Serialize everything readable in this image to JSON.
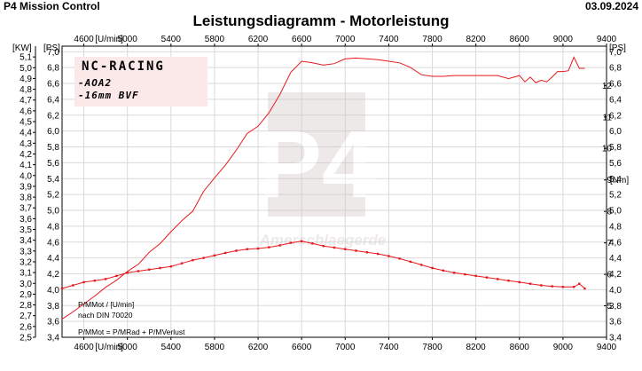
{
  "header": {
    "app_title": "P4 Mission Control",
    "chart_title": "Leistungsdiagramm - Motorleistung",
    "date": "03.09.2024"
  },
  "info_box": {
    "line1": "NC-RACING",
    "line2": "-AOA2",
    "line3": "-16mm BVF"
  },
  "watermark": {
    "logo": "P4",
    "text": "Amerschlaegerde"
  },
  "notes": {
    "line1": "P/MMot / [U/min]",
    "line2": "nach DIN 70020",
    "line3": "P/MMot = P/MRad + P/MVerlust"
  },
  "colors": {
    "series": "#e8191e",
    "grid": "#d9d9d9",
    "info_bg": "#fbe9e9"
  },
  "chart_data": {
    "type": "line",
    "title": "Leistungsdiagramm - Motorleistung",
    "x_axis": {
      "unit_label": "[U/min]",
      "range": [
        4400,
        9400
      ],
      "ticks": [
        4600,
        5000,
        5400,
        5800,
        6200,
        6600,
        7000,
        7400,
        7800,
        8200,
        8600,
        9000,
        9400
      ],
      "tick_labels": [
        "4600",
        "5000",
        "5400",
        "5800",
        "6200",
        "6600",
        "7000",
        "7400",
        "7800",
        "8200",
        "8600",
        "9000",
        "9400"
      ]
    },
    "y_left_kw": {
      "unit_label": "[KW]",
      "range": [
        2.5,
        5.2
      ],
      "tick_labels": [
        "2,5",
        "2,6",
        "2,7",
        "2,8",
        "2,9",
        "3,0",
        "3,1",
        "3,2",
        "3,3",
        "3,4",
        "3,5",
        "3,6",
        "3,7",
        "3,8",
        "3,9",
        "4,0",
        "4,1",
        "4,2",
        "4,3",
        "4,4",
        "4,5",
        "4,6",
        "4,7",
        "4,8",
        "4,9",
        "5,0",
        "5,1"
      ],
      "tick_values": [
        2.5,
        2.6,
        2.7,
        2.8,
        2.9,
        3.0,
        3.1,
        3.2,
        3.3,
        3.4,
        3.5,
        3.6,
        3.7,
        3.8,
        3.9,
        4.0,
        4.1,
        4.2,
        4.3,
        4.4,
        4.5,
        4.6,
        4.7,
        4.8,
        4.9,
        5.0,
        5.1
      ]
    },
    "y_left_ps": {
      "unit_label": "[PS]",
      "range": [
        3.4,
        7.07
      ],
      "tick_labels": [
        "3,4",
        "3,6",
        "3,8",
        "4,0",
        "4,2",
        "4,4",
        "4,6",
        "4,8",
        "5,0",
        "5,2",
        "5,4",
        "5,6",
        "5,8",
        "6,0",
        "6,2",
        "6,4",
        "6,6",
        "6,8",
        "7,0"
      ],
      "tick_values": [
        3.4,
        3.6,
        3.8,
        4.0,
        4.2,
        4.4,
        4.6,
        4.8,
        5.0,
        5.2,
        5.4,
        5.6,
        5.8,
        6.0,
        6.2,
        6.4,
        6.6,
        6.8,
        7.0
      ]
    },
    "y_right_ps": {
      "unit_label": "[PS]",
      "tick_labels": [
        "3,4",
        "3,6",
        "3,8",
        "4,0",
        "4,2",
        "4,4",
        "4,6",
        "4,8",
        "5,0",
        "5,2",
        "5,4",
        "5,6",
        "5,8",
        "6,0",
        "6,2",
        "6,4",
        "6,6",
        "6,8",
        "7,0"
      ],
      "tick_values": [
        3.4,
        3.6,
        3.8,
        4.0,
        4.2,
        4.4,
        4.6,
        4.8,
        5.0,
        5.2,
        5.4,
        5.6,
        5.8,
        6.0,
        6.2,
        6.4,
        6.6,
        6.8,
        7.0
      ]
    },
    "y_right_nm": {
      "unit_label": "[Nm]",
      "range": [
        4.0,
        13.25
      ],
      "tick_labels": [
        "5",
        "6",
        "7",
        "8",
        "9",
        "10",
        "11",
        "12"
      ],
      "tick_values": [
        5,
        6,
        7,
        8,
        9,
        10,
        11,
        12
      ]
    },
    "series": [
      {
        "axis": "ps",
        "x": [
          4400,
          4500,
          4600,
          4700,
          4800,
          4900,
          5000,
          5100,
          5200,
          5300,
          5400,
          5500,
          5600,
          5700,
          5800,
          5900,
          6000,
          6100,
          6200,
          6300,
          6400,
          6500,
          6600,
          6700,
          6800,
          6900,
          7000,
          7100,
          7200,
          7300,
          7400,
          7500,
          7600,
          7700,
          7800,
          7900,
          8000,
          8100,
          8200,
          8300,
          8400,
          8500,
          8600,
          8650,
          8700,
          8750,
          8800,
          8850,
          8900,
          8950,
          9000,
          9050,
          9100,
          9150,
          9200
        ],
        "y": [
          3.63,
          3.72,
          3.82,
          3.92,
          4.03,
          4.12,
          4.23,
          4.32,
          4.47,
          4.58,
          4.73,
          4.87,
          4.99,
          5.24,
          5.41,
          5.57,
          5.76,
          5.97,
          6.06,
          6.23,
          6.46,
          6.74,
          6.88,
          6.86,
          6.83,
          6.85,
          6.91,
          6.92,
          6.91,
          6.9,
          6.88,
          6.86,
          6.8,
          6.71,
          6.69,
          6.69,
          6.7,
          6.7,
          6.7,
          6.7,
          6.7,
          6.66,
          6.7,
          6.62,
          6.68,
          6.61,
          6.64,
          6.62,
          6.68,
          6.75,
          6.75,
          6.76,
          6.93,
          6.79,
          6.79
        ]
      },
      {
        "axis": "nm",
        "x": [
          4400,
          4500,
          4600,
          4700,
          4800,
          4900,
          5000,
          5100,
          5200,
          5300,
          5400,
          5500,
          5600,
          5700,
          5800,
          5900,
          6000,
          6100,
          6200,
          6300,
          6400,
          6500,
          6600,
          6700,
          6800,
          6900,
          7000,
          7100,
          7200,
          7300,
          7400,
          7500,
          7600,
          7700,
          7800,
          7900,
          8000,
          8100,
          8200,
          8300,
          8400,
          8500,
          8600,
          8700,
          8800,
          8900,
          9000,
          9100,
          9150,
          9200
        ],
        "y": [
          5.55,
          5.65,
          5.75,
          5.8,
          5.85,
          5.95,
          6.05,
          6.1,
          6.15,
          6.2,
          6.25,
          6.35,
          6.45,
          6.52,
          6.6,
          6.68,
          6.75,
          6.8,
          6.82,
          6.86,
          6.92,
          7.0,
          7.05,
          6.98,
          6.9,
          6.85,
          6.8,
          6.75,
          6.7,
          6.65,
          6.58,
          6.5,
          6.4,
          6.3,
          6.2,
          6.12,
          6.05,
          6.0,
          5.95,
          5.9,
          5.85,
          5.8,
          5.75,
          5.7,
          5.65,
          5.62,
          5.6,
          5.6,
          5.7,
          5.55
        ]
      }
    ],
    "grid": true
  }
}
